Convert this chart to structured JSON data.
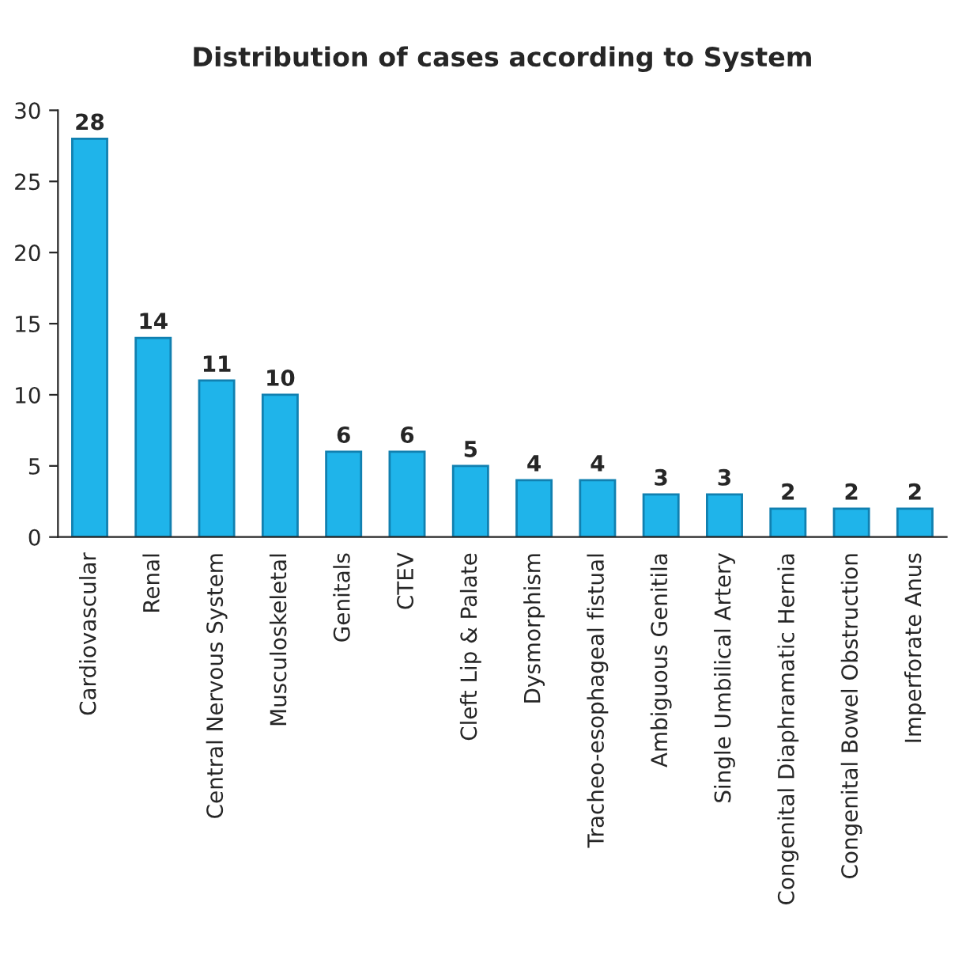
{
  "chart_data": {
    "type": "bar",
    "title": "Distribution of cases according to System",
    "categories": [
      "Cardiovascular",
      "Renal",
      "Central Nervous System",
      "Musculoskeletal",
      "Genitals",
      "CTEV",
      "Cleft Lip & Palate",
      "Dysmorphism",
      "Tracheo-esophageal fistual",
      "Ambiguous Genitila",
      "Single Umbilical Artery",
      "Congenital Diaphramatic Hernia",
      "Congenital Bowel Obstruction",
      "Imperforate Anus"
    ],
    "values": [
      28,
      14,
      11,
      10,
      6,
      6,
      5,
      4,
      4,
      3,
      3,
      2,
      2,
      2
    ],
    "color": "#1fb4ea",
    "ylim": [
      0,
      30
    ],
    "yticks": [
      0,
      5,
      10,
      15,
      20,
      25,
      30
    ],
    "grid": false,
    "data_labels": true
  }
}
